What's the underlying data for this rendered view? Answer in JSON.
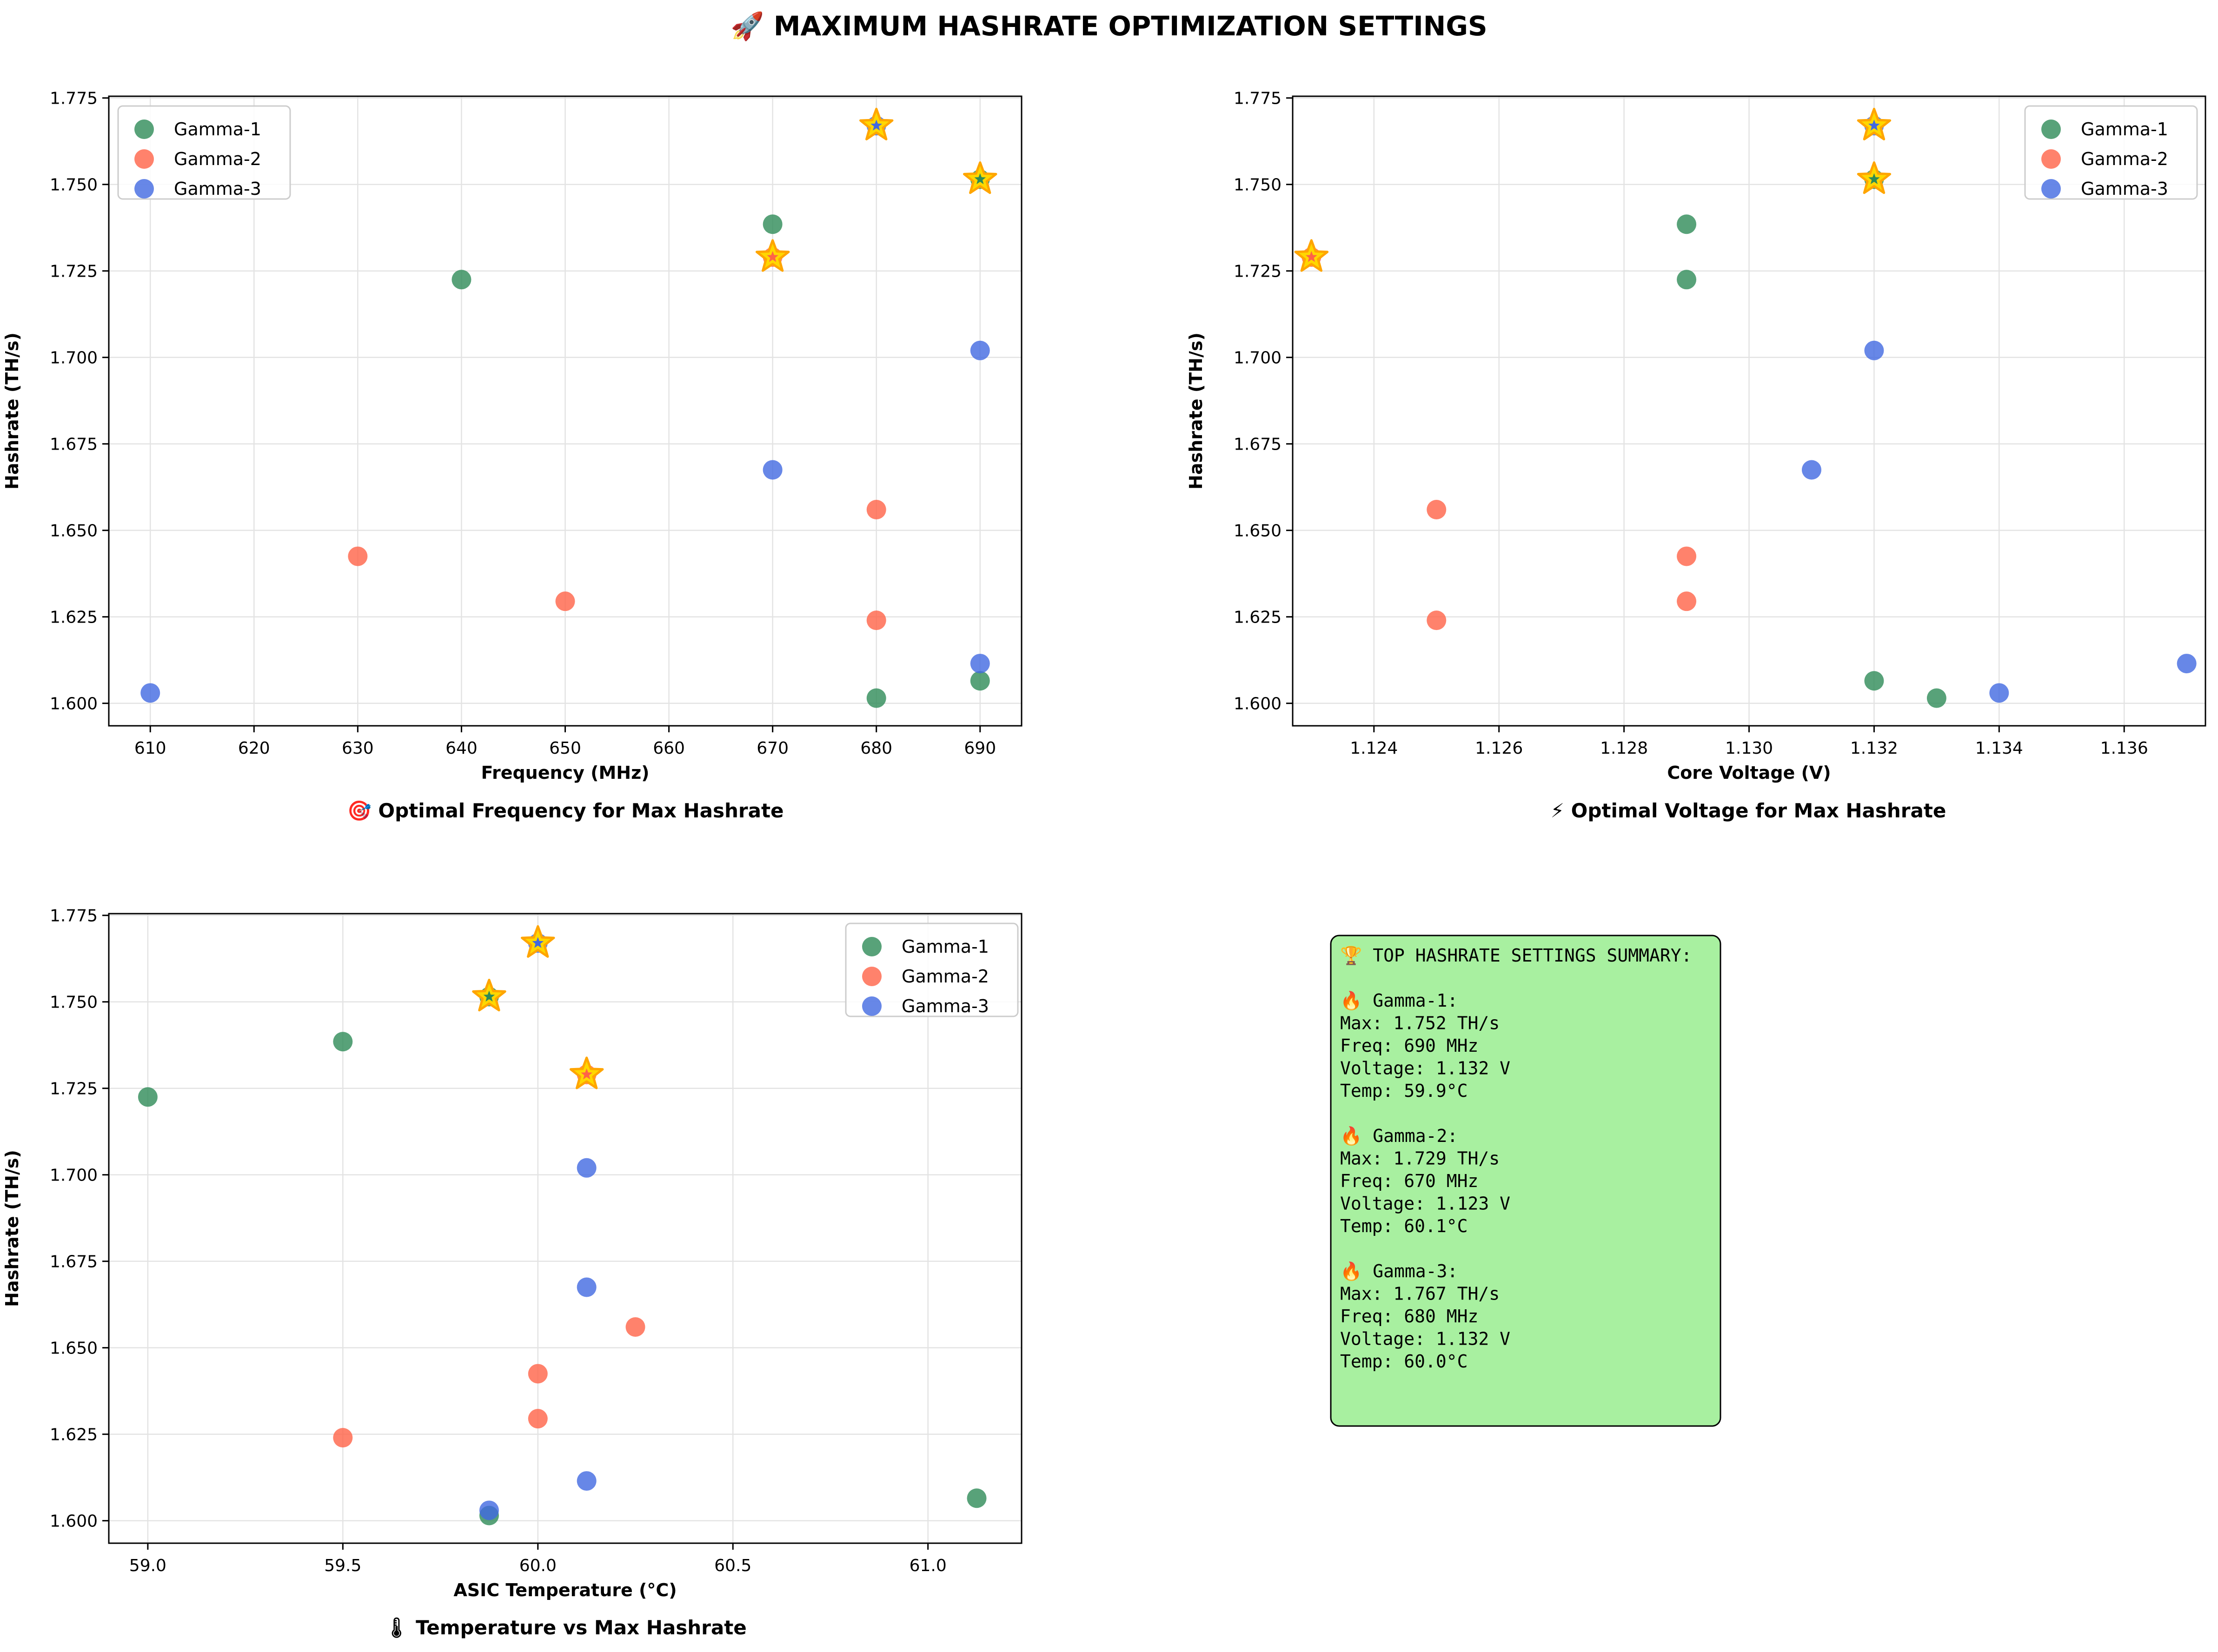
{
  "figure_title": "🚀 MAXIMUM HASHRATE OPTIMIZATION SETTINGS",
  "colors": {
    "Gamma-1": "#2e8b57",
    "Gamma-2": "#ff6347",
    "Gamma-3": "#4169e1",
    "star_fill": "#ffd700",
    "star_edge": "#ffa500",
    "summary_bg": "#a8f0a0",
    "grid": "#e3e3e3"
  },
  "chart_data": [
    {
      "type": "scatter",
      "title": "🎯 Optimal Frequency for Max Hashrate",
      "xlabel": "Frequency (MHz)",
      "ylabel": "Hashrate (TH/s)",
      "xlim": [
        606,
        694
      ],
      "ylim": [
        1.5935,
        1.7755
      ],
      "xticks": [
        610,
        620,
        630,
        640,
        650,
        660,
        670,
        680,
        690
      ],
      "xtick_labels": [
        "610",
        "620",
        "630",
        "640",
        "650",
        "660",
        "670",
        "680",
        "690"
      ],
      "yticks": [
        1.6,
        1.625,
        1.65,
        1.675,
        1.7,
        1.725,
        1.75,
        1.775
      ],
      "ytick_labels": [
        "1.600",
        "1.625",
        "1.650",
        "1.675",
        "1.700",
        "1.725",
        "1.750",
        "1.775"
      ],
      "grid": true,
      "legend": "upper left",
      "series": [
        {
          "name": "Gamma-1",
          "points": [
            [
              640,
              1.7225
            ],
            [
              670,
              1.7385
            ],
            [
              690,
              1.7515
            ],
            [
              680,
              1.6015
            ],
            [
              690,
              1.6065
            ]
          ]
        },
        {
          "name": "Gamma-2",
          "points": [
            [
              630,
              1.6425
            ],
            [
              650,
              1.6295
            ],
            [
              670,
              1.729
            ],
            [
              680,
              1.656
            ],
            [
              680,
              1.624
            ]
          ]
        },
        {
          "name": "Gamma-3",
          "points": [
            [
              610,
              1.603
            ],
            [
              670,
              1.6675
            ],
            [
              680,
              1.767
            ],
            [
              690,
              1.702
            ],
            [
              690,
              1.6115
            ]
          ]
        }
      ],
      "best_points": [
        {
          "series": "Gamma-1",
          "x": 690,
          "y": 1.7515
        },
        {
          "series": "Gamma-2",
          "x": 670,
          "y": 1.729
        },
        {
          "series": "Gamma-3",
          "x": 680,
          "y": 1.767
        }
      ]
    },
    {
      "type": "scatter",
      "title": "⚡ Optimal Voltage for Max Hashrate",
      "xlabel": "Core Voltage (V)",
      "ylabel": "Hashrate (TH/s)",
      "xlim": [
        1.1227,
        1.1373
      ],
      "ylim": [
        1.5935,
        1.7755
      ],
      "xticks": [
        1.124,
        1.126,
        1.128,
        1.13,
        1.132,
        1.134,
        1.136
      ],
      "xtick_labels": [
        "1.124",
        "1.126",
        "1.128",
        "1.130",
        "1.132",
        "1.134",
        "1.136"
      ],
      "yticks": [
        1.6,
        1.625,
        1.65,
        1.675,
        1.7,
        1.725,
        1.75,
        1.775
      ],
      "ytick_labels": [
        "1.600",
        "1.625",
        "1.650",
        "1.675",
        "1.700",
        "1.725",
        "1.750",
        "1.775"
      ],
      "grid": true,
      "legend": "upper right",
      "series": [
        {
          "name": "Gamma-1",
          "points": [
            [
              1.129,
              1.7225
            ],
            [
              1.129,
              1.7385
            ],
            [
              1.132,
              1.7515
            ],
            [
              1.133,
              1.6015
            ],
            [
              1.132,
              1.6065
            ]
          ]
        },
        {
          "name": "Gamma-2",
          "points": [
            [
              1.129,
              1.6425
            ],
            [
              1.129,
              1.6295
            ],
            [
              1.123,
              1.729
            ],
            [
              1.125,
              1.656
            ],
            [
              1.125,
              1.624
            ]
          ]
        },
        {
          "name": "Gamma-3",
          "points": [
            [
              1.134,
              1.603
            ],
            [
              1.131,
              1.6675
            ],
            [
              1.132,
              1.767
            ],
            [
              1.132,
              1.702
            ],
            [
              1.137,
              1.6115
            ]
          ]
        }
      ],
      "best_points": [
        {
          "series": "Gamma-1",
          "x": 1.132,
          "y": 1.7515
        },
        {
          "series": "Gamma-2",
          "x": 1.123,
          "y": 1.729
        },
        {
          "series": "Gamma-3",
          "x": 1.132,
          "y": 1.767
        }
      ]
    },
    {
      "type": "scatter",
      "title": "🌡 Temperature vs Max Hashrate",
      "xlabel": "ASIC Temperature (°C)",
      "ylabel": "Hashrate (TH/s)",
      "xlim": [
        58.9,
        61.24
      ],
      "ylim": [
        1.5935,
        1.7755
      ],
      "xticks": [
        59.0,
        59.5,
        60.0,
        60.5,
        61.0
      ],
      "xtick_labels": [
        "59.0",
        "59.5",
        "60.0",
        "60.5",
        "61.0"
      ],
      "yticks": [
        1.6,
        1.625,
        1.65,
        1.675,
        1.7,
        1.725,
        1.75,
        1.775
      ],
      "ytick_labels": [
        "1.600",
        "1.625",
        "1.650",
        "1.675",
        "1.700",
        "1.725",
        "1.750",
        "1.775"
      ],
      "grid": true,
      "legend": "upper right",
      "series": [
        {
          "name": "Gamma-1",
          "points": [
            [
              59.0,
              1.7225
            ],
            [
              59.5,
              1.7385
            ],
            [
              59.875,
              1.7515
            ],
            [
              59.875,
              1.6015
            ],
            [
              61.125,
              1.6065
            ]
          ]
        },
        {
          "name": "Gamma-2",
          "points": [
            [
              60.0,
              1.6425
            ],
            [
              60.0,
              1.6295
            ],
            [
              60.125,
              1.729
            ],
            [
              60.25,
              1.656
            ],
            [
              59.5,
              1.624
            ]
          ]
        },
        {
          "name": "Gamma-3",
          "points": [
            [
              59.875,
              1.603
            ],
            [
              60.125,
              1.6675
            ],
            [
              60.0,
              1.767
            ],
            [
              60.125,
              1.702
            ],
            [
              60.125,
              1.6115
            ]
          ]
        }
      ],
      "best_points": [
        {
          "series": "Gamma-1",
          "x": 59.875,
          "y": 1.7515
        },
        {
          "series": "Gamma-2",
          "x": 60.125,
          "y": 1.729
        },
        {
          "series": "Gamma-3",
          "x": 60.0,
          "y": 1.767
        }
      ]
    }
  ],
  "summary": {
    "lines": [
      "🏆 TOP HASHRATE SETTINGS SUMMARY:",
      "",
      "🔥 Gamma-1:",
      "   Max: 1.752 TH/s",
      "   Freq: 690 MHz",
      "   Voltage: 1.132 V",
      "   Temp: 59.9°C",
      "",
      "🔥 Gamma-2:",
      "   Max: 1.729 TH/s",
      "   Freq: 670 MHz",
      "   Voltage: 1.123 V",
      "   Temp: 60.1°C",
      "",
      "🔥 Gamma-3:",
      "   Max: 1.767 TH/s",
      "   Freq: 680 MHz",
      "   Voltage: 1.132 V",
      "   Temp: 60.0°C"
    ]
  }
}
